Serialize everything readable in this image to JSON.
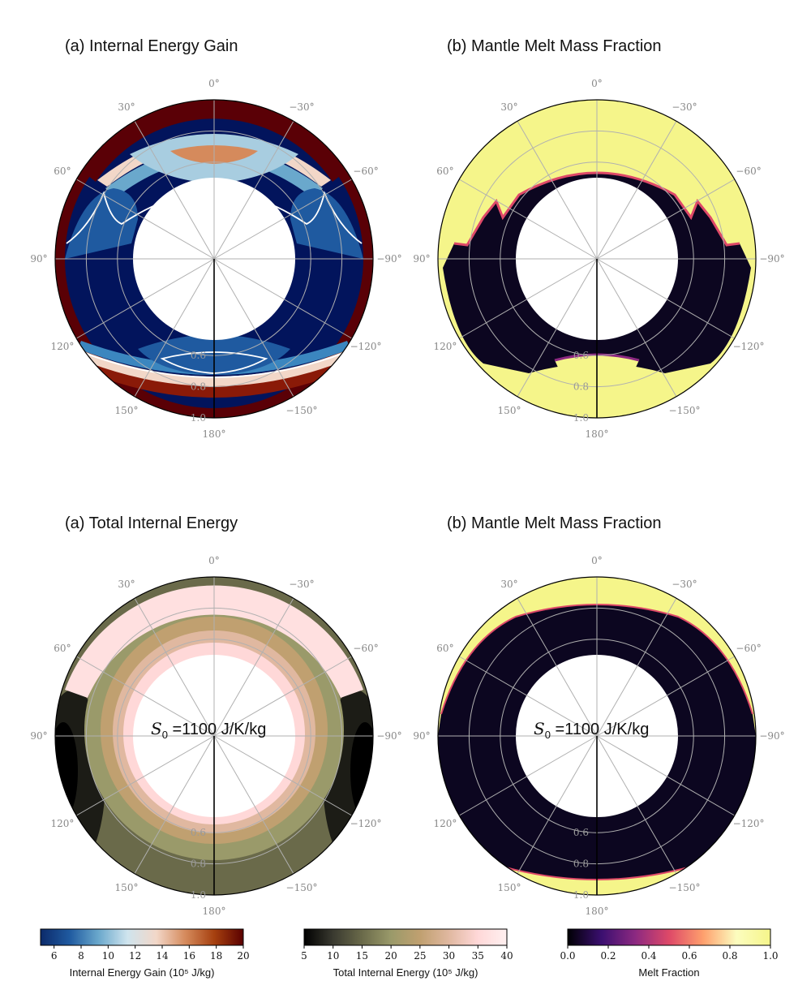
{
  "chart_data": [
    {
      "type": "heatmap",
      "title": "(a) Internal Energy Gain",
      "projection": "polar (angle in degrees, radius 0.5–1.0)",
      "theta_ticks": [
        "0°",
        "30°",
        "60°",
        "90°",
        "120°",
        "150°",
        "180°",
        "−150°",
        "−120°",
        "−90°",
        "−60°",
        "−30°"
      ],
      "r_ticks": [
        "0.6",
        "0.8",
        "1.0"
      ],
      "rlim": [
        0.5,
        1.0
      ],
      "colormap": "internal-energy-gain",
      "contour": "white line"
    },
    {
      "type": "heatmap",
      "title": "(b) Mantle Melt Mass Fraction",
      "projection": "polar",
      "theta_ticks": [
        "0°",
        "30°",
        "60°",
        "90°",
        "120°",
        "150°",
        "180°",
        "−150°",
        "−120°",
        "−90°",
        "−60°",
        "−30°"
      ],
      "r_ticks": [
        "0.6",
        "0.8",
        "1.0"
      ],
      "rlim": [
        0.5,
        1.0
      ],
      "colormap": "melt-fraction"
    },
    {
      "type": "heatmap",
      "title": "(a) Total Internal Energy",
      "projection": "polar",
      "theta_ticks": [
        "0°",
        "30°",
        "60°",
        "90°",
        "120°",
        "150°",
        "180°",
        "−150°",
        "−120°",
        "−90°",
        "−60°",
        "−30°"
      ],
      "r_ticks": [
        "0.6",
        "0.8",
        "1.0"
      ],
      "rlim": [
        0.5,
        1.0
      ],
      "colormap": "total-internal-energy",
      "annotation": {
        "math": "S",
        "sub": "0",
        "text": " =1100 J/K/kg"
      }
    },
    {
      "type": "heatmap",
      "title": "(b) Mantle Melt Mass Fraction",
      "projection": "polar",
      "theta_ticks": [
        "0°",
        "30°",
        "60°",
        "90°",
        "120°",
        "150°",
        "180°",
        "−150°",
        "−120°",
        "−90°",
        "−60°",
        "−30°"
      ],
      "r_ticks": [
        "0.6",
        "0.8",
        "1.0"
      ],
      "rlim": [
        0.5,
        1.0
      ],
      "colormap": "melt-fraction",
      "annotation": {
        "math": "S",
        "sub": "0",
        "text": " =1100 J/K/kg"
      }
    }
  ],
  "colorbars": [
    {
      "label": "Internal Energy Gain (10⁵ J/kg)",
      "ticks": [
        "6",
        "8",
        "10",
        "12",
        "14",
        "16",
        "18",
        "20"
      ],
      "range": [
        5,
        20
      ],
      "colors": [
        "#0c2a6a",
        "#1f5aa0",
        "#6aa8cc",
        "#cfe4ee",
        "#f2d7c8",
        "#d58a5c",
        "#a6400f",
        "#5a0000"
      ]
    },
    {
      "label": "Total Internal Energy (10⁵ J/kg)",
      "ticks": [
        "5",
        "10",
        "15",
        "20",
        "25",
        "30",
        "35",
        "40"
      ],
      "range": [
        5,
        40
      ],
      "colors": [
        "#000000",
        "#3a3a30",
        "#6a6a4a",
        "#9a9a6a",
        "#c0a070",
        "#e0b8a0",
        "#ffd8d8",
        "#fff0f0"
      ]
    },
    {
      "label": "Melt Fraction",
      "ticks": [
        "0.0",
        "0.2",
        "0.4",
        "0.6",
        "0.8",
        "1.0"
      ],
      "range": [
        0,
        1
      ],
      "colors": [
        "#000004",
        "#3b0f70",
        "#8c2981",
        "#de4968",
        "#fe9f6d",
        "#fcfdbf",
        "#f5f58a"
      ]
    }
  ]
}
